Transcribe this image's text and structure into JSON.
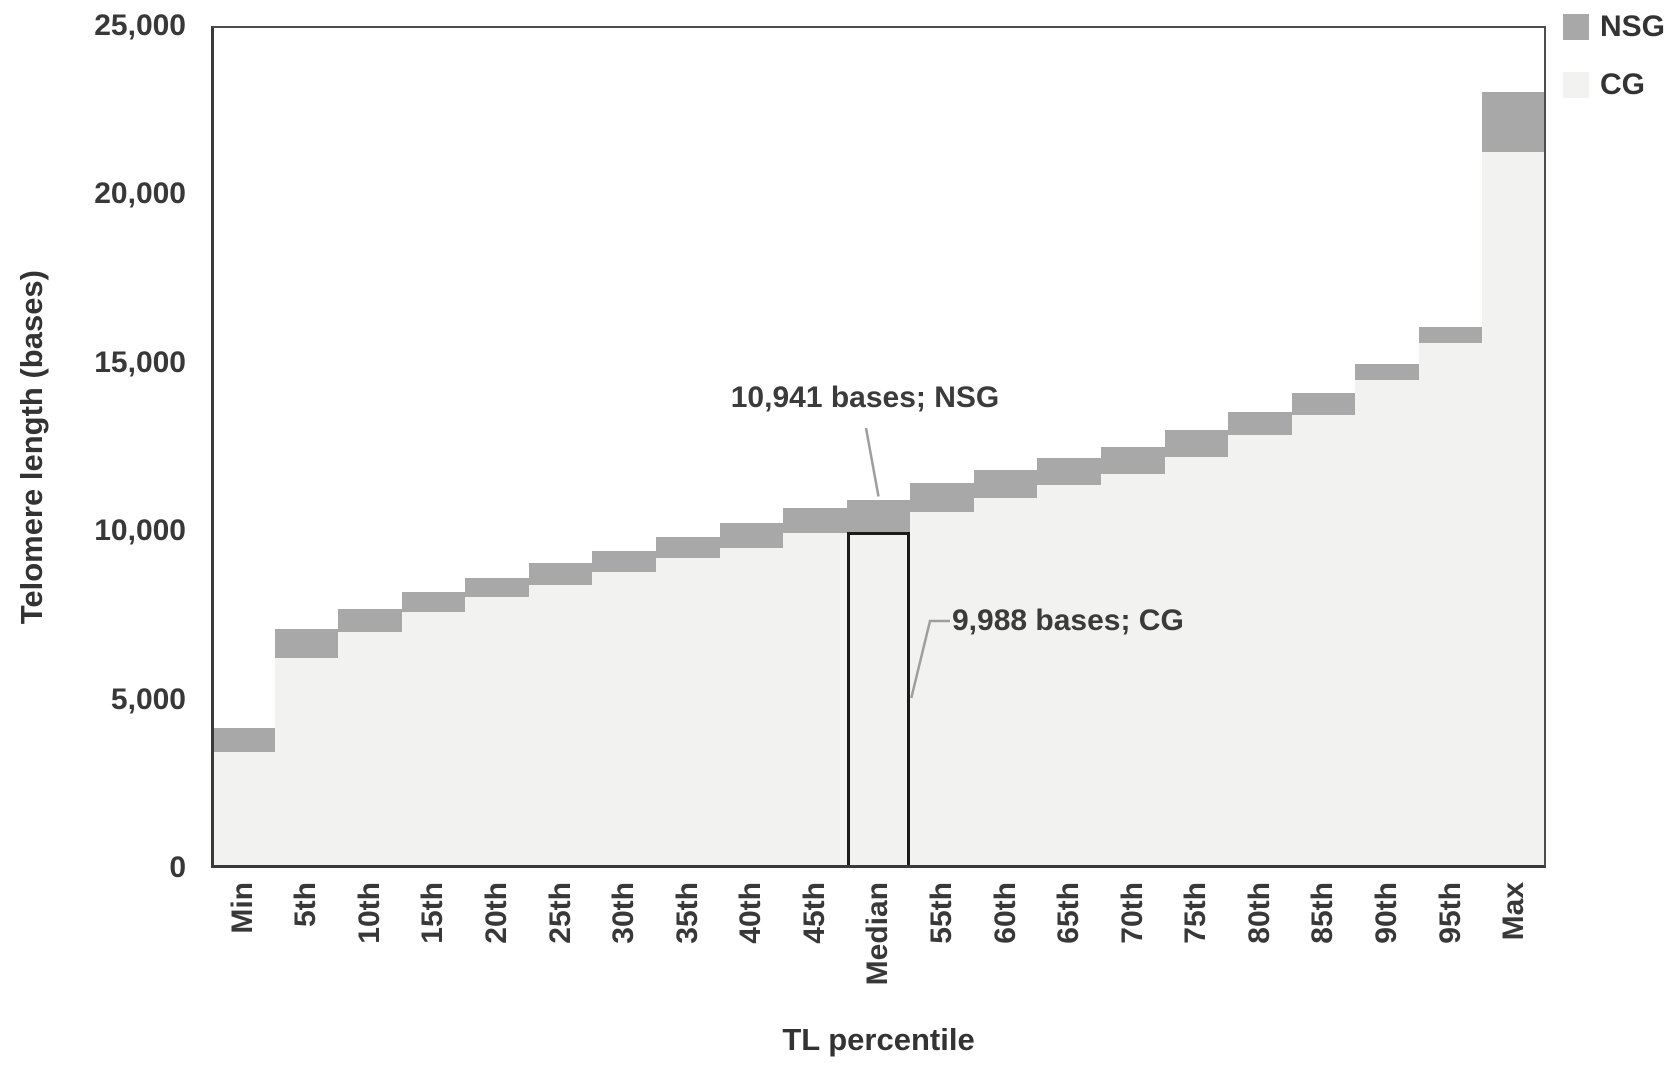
{
  "chart_data": {
    "type": "bar",
    "subtype": "overlapped-percentile-distribution",
    "title": "",
    "xlabel": "TL percentile",
    "ylabel": "Telomere length (bases)",
    "ylim": [
      0,
      25000
    ],
    "ytick_step": 5000,
    "ytick_labels": [
      "0",
      "5,000",
      "10,000",
      "15,000",
      "20,000",
      "25,000"
    ],
    "grid": false,
    "legend_position": "top-right",
    "categories": [
      "Min",
      "5th",
      "10th",
      "15th",
      "20th",
      "25th",
      "30th",
      "35th",
      "40th",
      "45th",
      "Median",
      "55th",
      "60th",
      "65th",
      "70th",
      "75th",
      "80th",
      "85th",
      "90th",
      "95th",
      "Max"
    ],
    "series": [
      {
        "name": "NSG",
        "color": "#a8a8a8",
        "values": [
          4150,
          7100,
          7700,
          8200,
          8600,
          9050,
          9420,
          9830,
          10250,
          10700,
          10941,
          11430,
          11820,
          12170,
          12500,
          13000,
          13550,
          14100,
          14950,
          16050,
          23050
        ]
      },
      {
        "name": "CG",
        "color": "#f2f2f1",
        "values": [
          3450,
          6250,
          7000,
          7600,
          8050,
          8400,
          8800,
          9200,
          9500,
          9950,
          9988,
          10570,
          10990,
          11370,
          11700,
          12200,
          12850,
          13450,
          14500,
          15600,
          21250
        ]
      }
    ],
    "highlighted_category": "Median",
    "annotations": [
      {
        "text": "10,941 bases; NSG",
        "series": "NSG",
        "category": "Median",
        "value": 10941
      },
      {
        "text": "9,988 bases; CG",
        "series": "CG",
        "category": "Median",
        "value": 9988
      }
    ]
  },
  "colors": {
    "nsg_bar": "#a8a8a8",
    "cg_bar": "#f2f2f1",
    "median_outline": "#1b1b1b",
    "plot_border": "#3a3a3a",
    "text": "#383838",
    "leader_line": "#9e9e9e"
  }
}
